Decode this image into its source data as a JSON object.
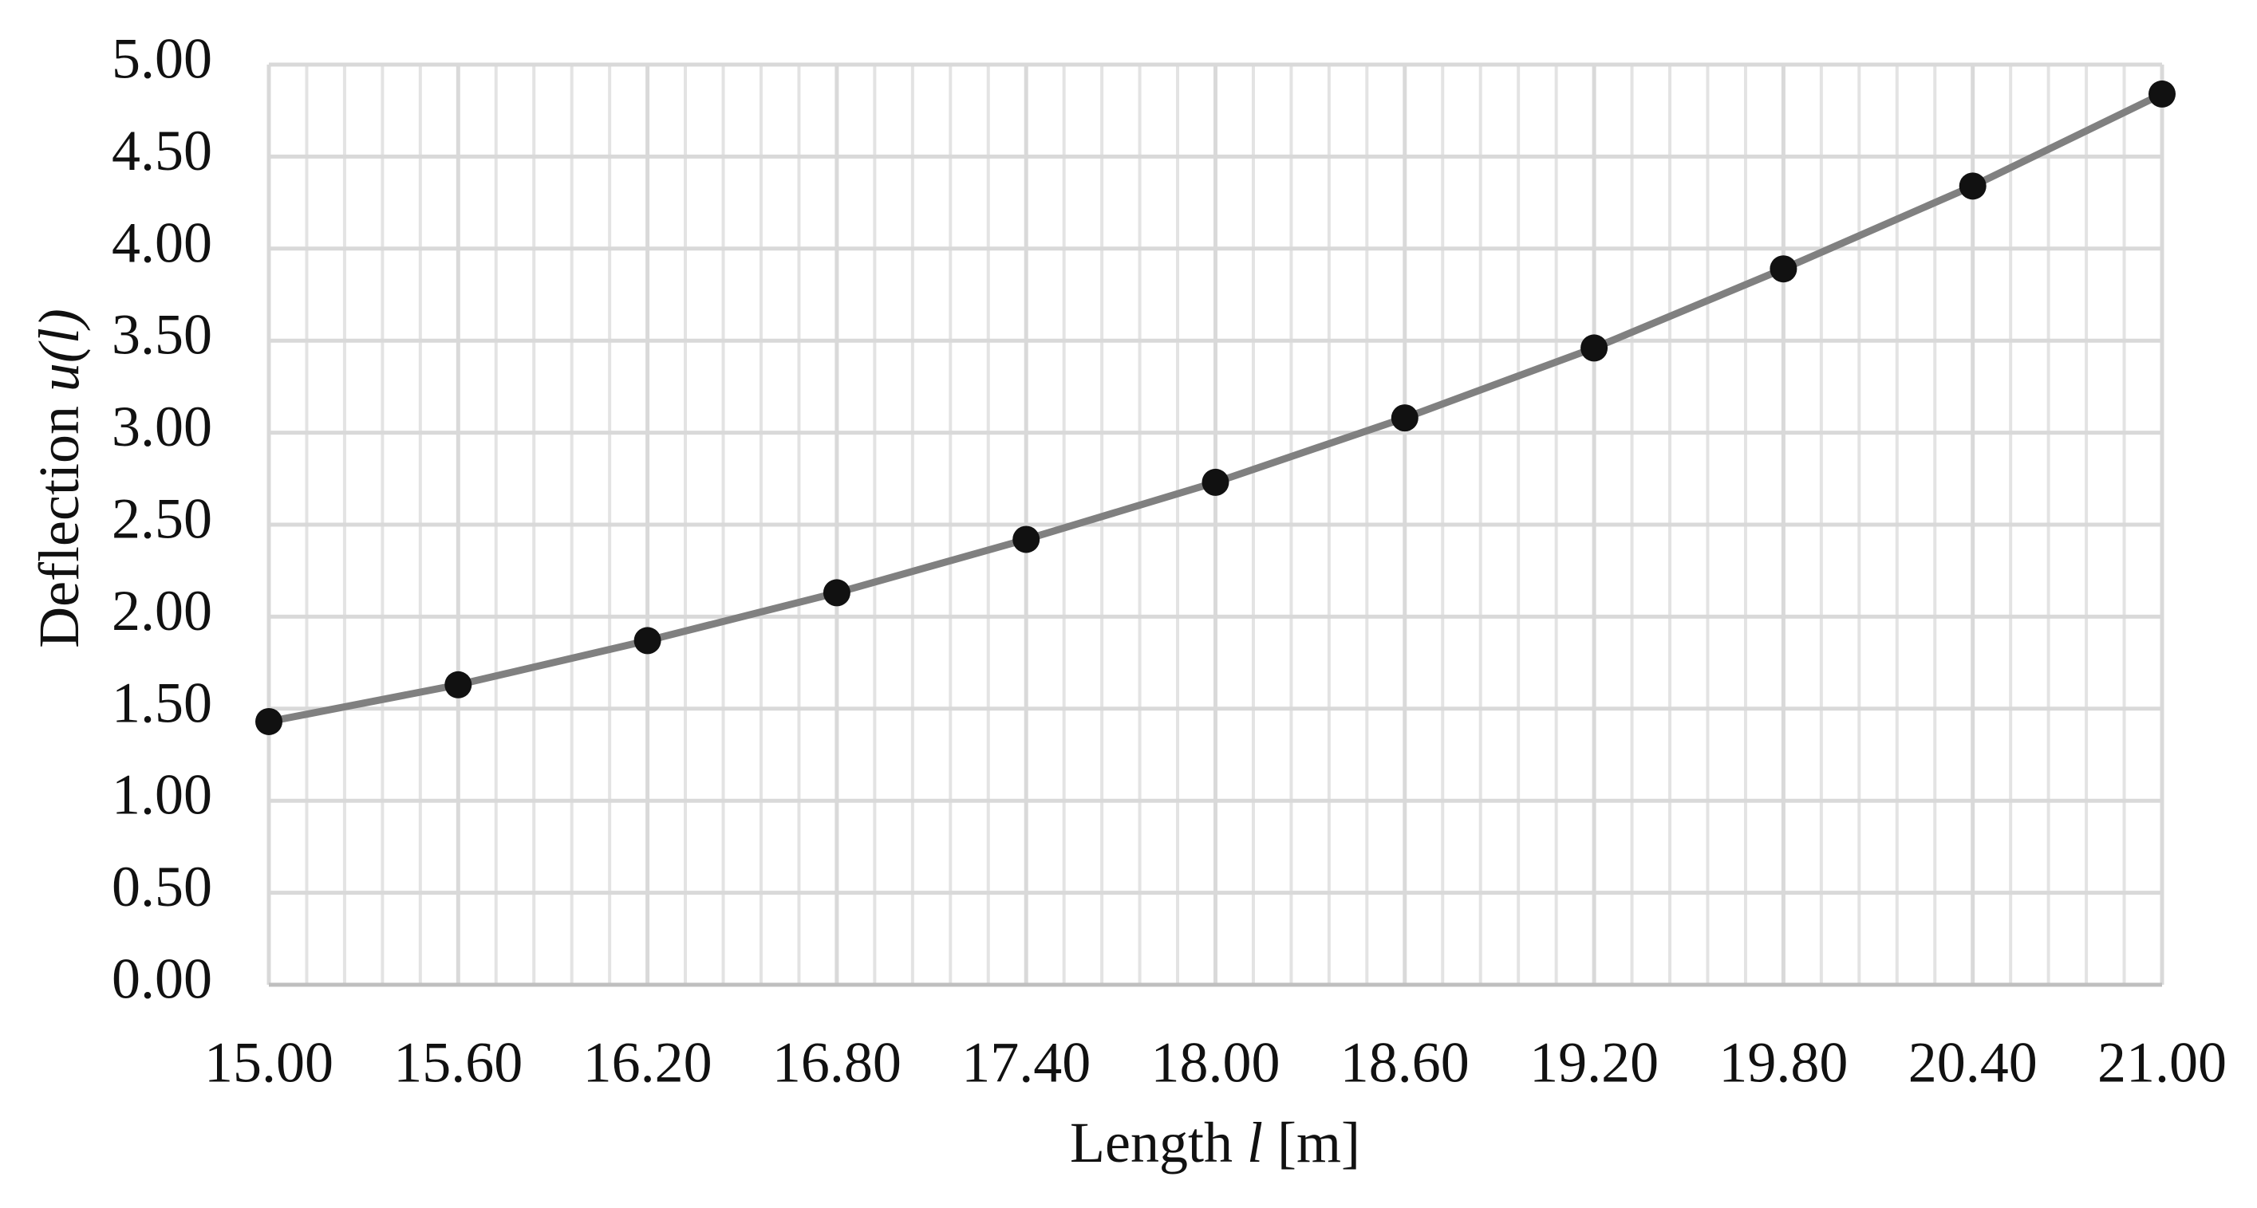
{
  "chart_data": {
    "type": "line",
    "xlabel": [
      "Length ",
      "l",
      " [m]"
    ],
    "ylabel": [
      "Deflection ",
      "u(l)"
    ],
    "x": [
      15.0,
      15.6,
      16.2,
      16.8,
      17.4,
      18.0,
      18.6,
      19.2,
      19.8,
      20.4,
      21.0
    ],
    "series": [
      {
        "color": "#808080",
        "marker_color": "#111111",
        "values": [
          1.43,
          1.63,
          1.87,
          2.13,
          2.42,
          2.73,
          3.08,
          3.46,
          3.89,
          4.34,
          4.84
        ]
      }
    ],
    "xlim": [
      15.0,
      21.0
    ],
    "xticks": [
      {
        "value": 15.0,
        "label": "15.00"
      },
      {
        "value": 15.6,
        "label": "15.60"
      },
      {
        "value": 16.2,
        "label": "16.20"
      },
      {
        "value": 16.8,
        "label": "16.80"
      },
      {
        "value": 17.4,
        "label": "17.40"
      },
      {
        "value": 18.0,
        "label": "18.00"
      },
      {
        "value": 18.6,
        "label": "18.60"
      },
      {
        "value": 19.2,
        "label": "19.20"
      },
      {
        "value": 19.8,
        "label": "19.80"
      },
      {
        "value": 20.4,
        "label": "20.40"
      },
      {
        "value": 21.0,
        "label": "21.00"
      }
    ],
    "x_minor_grid_step": 0.12,
    "ylim": [
      0,
      5
    ],
    "yticks": [
      {
        "value": 0,
        "label": "0.00"
      },
      {
        "value": 0.5,
        "label": "0.50"
      },
      {
        "value": 1,
        "label": "1.00"
      },
      {
        "value": 1.5,
        "label": "1.50"
      },
      {
        "value": 2,
        "label": "2.00"
      },
      {
        "value": 2.5,
        "label": "2.50"
      },
      {
        "value": 3,
        "label": "3.00"
      },
      {
        "value": 3.5,
        "label": "3.50"
      },
      {
        "value": 4,
        "label": "4.00"
      },
      {
        "value": 4.5,
        "label": "4.50"
      },
      {
        "value": 5,
        "label": "5.00"
      }
    ],
    "grid": true
  }
}
